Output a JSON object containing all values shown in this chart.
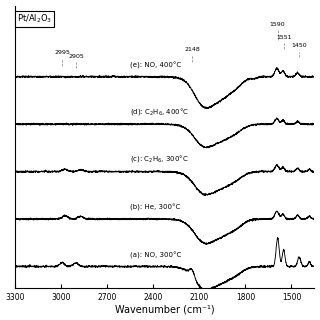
{
  "background_color": "#f5f5f5",
  "xlabel": "Wavenumber (cm⁻¹)",
  "xlim": [
    3300,
    1350
  ],
  "x_ticks": [
    3300,
    3000,
    2700,
    2400,
    2100,
    1800,
    1500
  ],
  "x_tick_labels": [
    "3300",
    "3000",
    "2700",
    "2400",
    "2100",
    "1800",
    "1500"
  ],
  "label_box_text": "Pt/Al$_2$O$_3$",
  "spectrum_labels": [
    "(e): NO, 400°C",
    "(d): C$_2$H$_6$, 400°C",
    "(c): C$_2$H$_6$, 300°C",
    "(b): He, 300°C",
    "(a): NO, 300°C"
  ],
  "offsets": [
    4.0,
    3.0,
    2.0,
    1.0,
    0.0
  ],
  "annot_peaks": [
    {
      "text": "2995",
      "x": 2995,
      "ybase": 4.22,
      "ytop": 4.45
    },
    {
      "text": "2905",
      "x": 2905,
      "ybase": 4.18,
      "ytop": 4.38
    },
    {
      "text": "2148",
      "x": 2148,
      "ybase": 4.32,
      "ytop": 4.52
    },
    {
      "text": "1590",
      "x": 1590,
      "ybase": 4.78,
      "ytop": 5.05
    },
    {
      "text": "1551",
      "x": 1551,
      "ybase": 4.58,
      "ytop": 4.78
    },
    {
      "text": "1450",
      "x": 1450,
      "ybase": 4.42,
      "ytop": 4.6
    }
  ]
}
